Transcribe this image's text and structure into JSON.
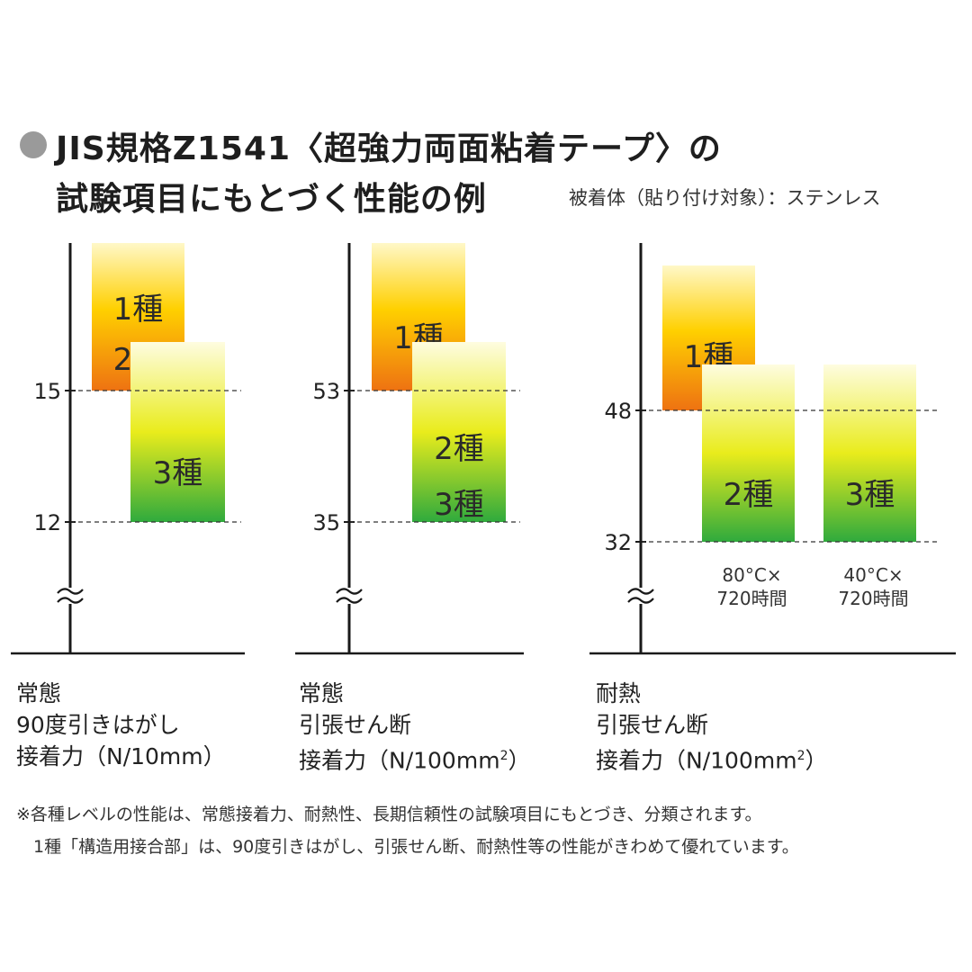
{
  "header": {
    "title_line1": "JIS規格Z1541〈超強力両面粘着テープ〉の",
    "title_line2": "試験項目にもとづく性能の例",
    "substrate_note": "被着体（貼り付け対象）：ステンレス"
  },
  "colors": {
    "top_band": [
      "#fff8c8",
      "#ffd000",
      "#ee7212"
    ],
    "lower_band": [
      "#fefce0",
      "#e9ec1c",
      "#2faa3d"
    ],
    "axis": "#1a1a1a"
  },
  "chart_data": [
    {
      "type": "bar",
      "caption": [
        "常態",
        "90度引きはがし",
        "接着力（N/10mm）"
      ],
      "ticks": [
        15,
        12
      ],
      "axis_break": true,
      "bars": [
        {
          "labels": [
            "1種",
            "2種"
          ],
          "min": 15,
          "open_top": true,
          "fill": "orange"
        },
        {
          "labels": [
            "3種"
          ],
          "min": 12,
          "open_top": true,
          "fill": "green"
        }
      ]
    },
    {
      "type": "bar",
      "caption": [
        "常態",
        "引張せん断",
        "接着力（N/100mm",
        "2",
        "）"
      ],
      "ticks": [
        53,
        35
      ],
      "axis_break": true,
      "bars": [
        {
          "labels": [
            "1種"
          ],
          "min": 53,
          "open_top": true,
          "fill": "orange"
        },
        {
          "labels": [
            "2種",
            "3種"
          ],
          "min": 35,
          "open_top": true,
          "fill": "green"
        }
      ]
    },
    {
      "type": "bar",
      "caption": [
        "耐熱",
        "引張せん断",
        "接着力（N/100mm",
        "2",
        "）"
      ],
      "ticks": [
        48,
        32
      ],
      "axis_break": true,
      "bars": [
        {
          "labels": [
            "1種"
          ],
          "min": 48,
          "open_top": true,
          "fill": "orange"
        },
        {
          "labels": [
            "2種"
          ],
          "min": 32,
          "open_top": true,
          "fill": "green",
          "condition": [
            "80°C×",
            "720時間"
          ]
        },
        {
          "labels": [
            "3種"
          ],
          "min": 32,
          "open_top": true,
          "fill": "green",
          "condition": [
            "40°C×",
            "720時間"
          ]
        }
      ]
    }
  ],
  "footnotes": [
    "※各種レベルの性能は、常態接着力、耐熱性、長期信頼性の試験項目にもとづき、分類されます。",
    "　1種「構造用接合部」は、90度引きはがし、引張せん断、耐熱性等の性能がきわめて優れています。"
  ]
}
